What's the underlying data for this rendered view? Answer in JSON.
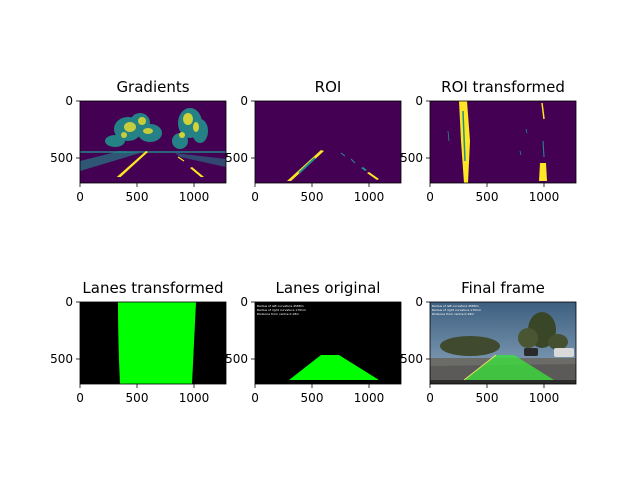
{
  "chart_data": [
    {
      "type": "image",
      "title": "Gradients",
      "content": "binary-gradients",
      "xticks": [
        0,
        500,
        1000
      ],
      "yticks": [
        0,
        500
      ],
      "xlim": [
        0,
        1280
      ],
      "ylim": [
        720,
        0
      ],
      "colormap": "viridis",
      "colors": {
        "low": "#440154",
        "mid": "#21908c",
        "high": "#fde725"
      }
    },
    {
      "type": "image",
      "title": "ROI",
      "content": "roi-lane-lines",
      "xticks": [
        0,
        500,
        1000
      ],
      "yticks": [
        0,
        500
      ],
      "xlim": [
        0,
        1280
      ],
      "ylim": [
        720,
        0
      ],
      "colormap": "viridis",
      "colors": {
        "low": "#440154",
        "mid": "#21908c",
        "high": "#fde725"
      }
    },
    {
      "type": "image",
      "title": "ROI transformed",
      "content": "warped-lane-lines",
      "xticks": [
        0,
        500,
        1000
      ],
      "yticks": [
        0,
        500
      ],
      "xlim": [
        0,
        1280
      ],
      "ylim": [
        720,
        0
      ],
      "colormap": "viridis",
      "colors": {
        "low": "#440154",
        "mid": "#21908c",
        "high": "#fde725"
      }
    },
    {
      "type": "image",
      "title": "Lanes transformed",
      "content": "warped-lane-polygon",
      "xticks": [
        0,
        500,
        1000
      ],
      "yticks": [
        0,
        500
      ],
      "xlim": [
        0,
        1280
      ],
      "ylim": [
        720,
        0
      ],
      "colors": {
        "background": "#000000",
        "lane": "#00ff00"
      }
    },
    {
      "type": "image",
      "title": "Lanes original",
      "content": "unwarped-lane-polygon",
      "xticks": [
        0,
        500,
        1000
      ],
      "yticks": [
        0,
        500
      ],
      "xlim": [
        0,
        1280
      ],
      "ylim": [
        720,
        0
      ],
      "colors": {
        "background": "#000000",
        "lane": "#00ff00"
      },
      "overlay_text": [
        "Radius of left curvature 4588m",
        "Radius of right curvature 1701m",
        "Distance from centre 0.18m"
      ]
    },
    {
      "type": "image",
      "title": "Final frame",
      "content": "road-photo-with-lane-overlay",
      "xticks": [
        0,
        500,
        1000
      ],
      "yticks": [
        0,
        500
      ],
      "xlim": [
        0,
        1280
      ],
      "ylim": [
        720,
        0
      ],
      "colors": {
        "lane": "#39e639"
      },
      "overlay_text": [
        "Radius of left curvature 4588m",
        "Radius of right curvature 1701m",
        "Distance from centre 0.18m"
      ]
    }
  ]
}
